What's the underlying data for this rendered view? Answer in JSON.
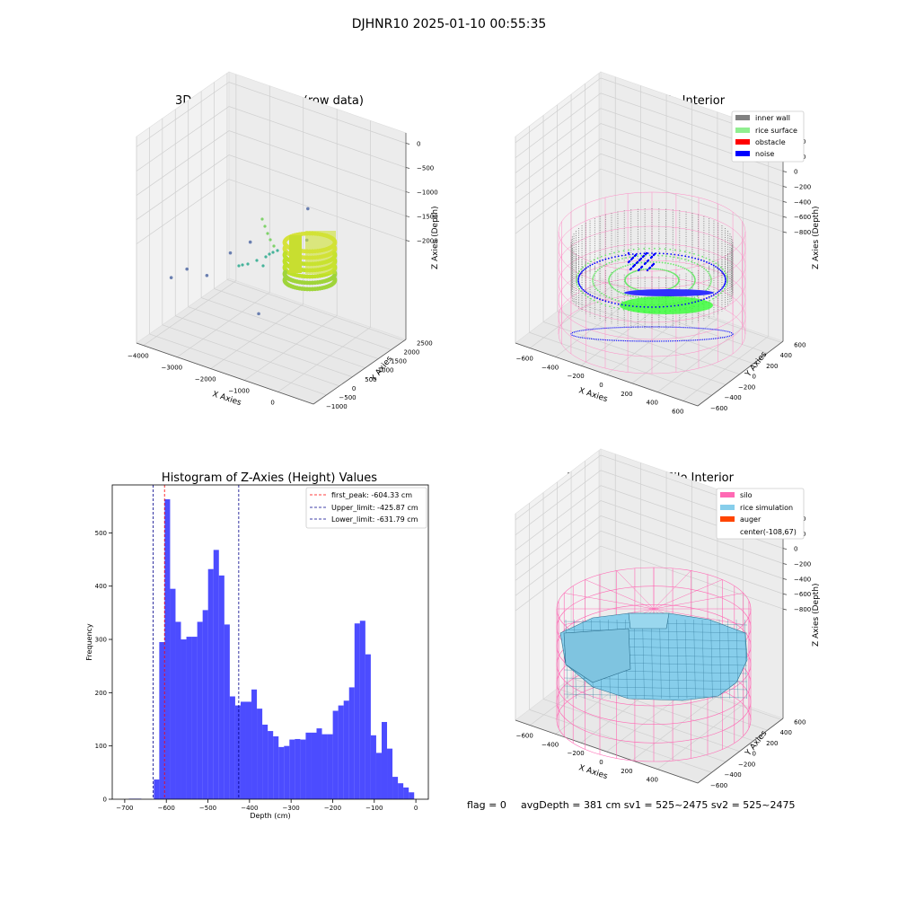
{
  "suptitle": "DJHNR10 2025-01-10 00:55:35",
  "footer": {
    "flag": "flag = 0",
    "avg": "avgDepth = 381 cm  sv1 = 525~2475  sv2 = 525~2475"
  },
  "colors": {
    "silo": "#ff69b4",
    "rice_simulation": "#87ceeb",
    "auger": "#ff4500",
    "inner_wall": "#808080",
    "rice_surface": "#90ee90",
    "obstacle": "#ff0000",
    "noise": "#0000ff",
    "hist_bar": "#0000ff",
    "first_peak_line": "#ff0000",
    "limit_line": "#00008b"
  },
  "chart_data": [
    {
      "type": "scatter",
      "title": "3D Plot of Silo Interior(row data)",
      "xlabel": "X Axies",
      "ylabel": "Y Axies",
      "zlabel": "Z Axies (Depth)",
      "x_ticks": [
        "−4000",
        "−3000",
        "−2000",
        "−1000",
        "0"
      ],
      "y_ticks": [
        "−1000",
        "−500",
        "0",
        "500",
        "1000",
        "1500",
        "2000",
        "2500"
      ],
      "z_ticks": [
        "0",
        "−500",
        "−1000",
        "−1500",
        "−2000"
      ],
      "xlim": [
        -4300,
        700
      ],
      "ylim": [
        -1000,
        2600
      ],
      "zlim": [
        -2300,
        100
      ],
      "outliers": [
        {
          "x": -3900,
          "y": -200,
          "z": -1650
        },
        {
          "x": -3600,
          "y": 0,
          "z": -1550
        },
        {
          "x": -3400,
          "y": 500,
          "z": -1700
        },
        {
          "x": -3100,
          "y": 1000,
          "z": -1500
        },
        {
          "x": -2900,
          "y": 1500,
          "z": -1450
        },
        {
          "x": -1500,
          "y": -100,
          "z": -1750
        },
        {
          "x": -1400,
          "y": 1200,
          "z": -1350
        },
        {
          "x": -1300,
          "y": 1500,
          "z": -1200
        },
        {
          "x": -1200,
          "y": 1400,
          "z": -800
        }
      ]
    },
    {
      "type": "scatter",
      "title": "3D classify of Silo Interior",
      "xlabel": "X Axies",
      "ylabel": "Y Axies",
      "zlabel": "Z Axies (Depth)",
      "x_ticks": [
        "−600",
        "−400",
        "−200",
        "0",
        "200",
        "400",
        "600"
      ],
      "y_ticks": [
        "−600",
        "−400",
        "−200",
        "0",
        "200",
        "400",
        "600"
      ],
      "z_ticks": [
        "400",
        "200",
        "0",
        "−200",
        "−400",
        "−600",
        "−800"
      ],
      "xlim": [
        -700,
        600
      ],
      "ylim": [
        -600,
        600
      ],
      "zlim": [
        -900,
        500
      ],
      "legend": [
        "inner wall",
        "rice surface",
        "obstacle",
        "noise"
      ],
      "legend_position": "top-right"
    },
    {
      "type": "bar",
      "title": "Histogram of Z-Axies (Height) Values",
      "xlabel": "Depth (cm)",
      "ylabel": "Frequency",
      "xlim": [
        -730,
        30
      ],
      "ylim": [
        0,
        590
      ],
      "x_ticks": [
        -700,
        -600,
        -500,
        -400,
        -300,
        -200,
        -100,
        0
      ],
      "y_ticks": [
        0,
        100,
        200,
        300,
        400,
        500
      ],
      "bins": [
        {
          "x0": -690,
          "x1": -675,
          "count": 1
        },
        {
          "x0": -675,
          "x1": -660,
          "count": 1
        },
        {
          "x0": -630.0,
          "x1": -616.96,
          "count": 37
        },
        {
          "x0": -616.96,
          "x1": -603.92,
          "count": 295
        },
        {
          "x0": -603.92,
          "x1": -590.88,
          "count": 563
        },
        {
          "x0": -590.88,
          "x1": -577.84,
          "count": 395
        },
        {
          "x0": -577.84,
          "x1": -564.8,
          "count": 333
        },
        {
          "x0": -564.8,
          "x1": -551.76,
          "count": 300
        },
        {
          "x0": -551.76,
          "x1": -538.72,
          "count": 305
        },
        {
          "x0": -538.72,
          "x1": -525.68,
          "count": 305
        },
        {
          "x0": -525.68,
          "x1": -512.64,
          "count": 333
        },
        {
          "x0": -512.64,
          "x1": -499.6,
          "count": 355
        },
        {
          "x0": -499.6,
          "x1": -486.56,
          "count": 432
        },
        {
          "x0": -486.56,
          "x1": -473.52,
          "count": 468
        },
        {
          "x0": -473.52,
          "x1": -460.48,
          "count": 420
        },
        {
          "x0": -460.48,
          "x1": -447.44,
          "count": 328
        },
        {
          "x0": -447.44,
          "x1": -434.4,
          "count": 193
        },
        {
          "x0": -434.4,
          "x1": -421.36,
          "count": 176
        },
        {
          "x0": -421.36,
          "x1": -408.32,
          "count": 183
        },
        {
          "x0": -408.32,
          "x1": -395.28,
          "count": 183
        },
        {
          "x0": -395.28,
          "x1": -382.24,
          "count": 206
        },
        {
          "x0": -382.24,
          "x1": -369.2,
          "count": 170
        },
        {
          "x0": -369.2,
          "x1": -356.16,
          "count": 140
        },
        {
          "x0": -356.16,
          "x1": -343.12,
          "count": 128
        },
        {
          "x0": -343.12,
          "x1": -330.08,
          "count": 118
        },
        {
          "x0": -330.08,
          "x1": -317.04,
          "count": 98
        },
        {
          "x0": -317.04,
          "x1": -304.0,
          "count": 100
        },
        {
          "x0": -304.0,
          "x1": -290.96,
          "count": 112
        },
        {
          "x0": -290.96,
          "x1": -277.92,
          "count": 113
        },
        {
          "x0": -277.92,
          "x1": -264.88,
          "count": 112
        },
        {
          "x0": -264.88,
          "x1": -251.84,
          "count": 125
        },
        {
          "x0": -251.84,
          "x1": -238.8,
          "count": 125
        },
        {
          "x0": -238.8,
          "x1": -225.76,
          "count": 133
        },
        {
          "x0": -225.76,
          "x1": -212.72,
          "count": 122
        },
        {
          "x0": -212.72,
          "x1": -199.68,
          "count": 122
        },
        {
          "x0": -199.68,
          "x1": -186.64,
          "count": 166
        },
        {
          "x0": -186.64,
          "x1": -173.6,
          "count": 176
        },
        {
          "x0": -173.6,
          "x1": -160.56,
          "count": 185
        },
        {
          "x0": -160.56,
          "x1": -147.52,
          "count": 210
        },
        {
          "x0": -147.52,
          "x1": -134.48,
          "count": 330
        },
        {
          "x0": -134.48,
          "x1": -121.44,
          "count": 335
        },
        {
          "x0": -121.44,
          "x1": -108.4,
          "count": 272
        },
        {
          "x0": -108.4,
          "x1": -95.36,
          "count": 120
        },
        {
          "x0": -95.36,
          "x1": -82.32,
          "count": 87
        },
        {
          "x0": -82.32,
          "x1": -69.28,
          "count": 145
        },
        {
          "x0": -69.28,
          "x1": -56.24,
          "count": 95
        },
        {
          "x0": -56.24,
          "x1": -43.2,
          "count": 42
        },
        {
          "x0": -43.2,
          "x1": -30.16,
          "count": 30
        },
        {
          "x0": -30.16,
          "x1": -17.12,
          "count": 22
        },
        {
          "x0": -17.12,
          "x1": -4.08,
          "count": 13
        }
      ],
      "vlines": [
        {
          "label": "first_peak: -604.33 cm",
          "x": -604.33,
          "color": "#ff0000"
        },
        {
          "label": "Upper_limit: -425.87 cm",
          "x": -425.87,
          "color": "#00008b"
        },
        {
          "label": "Lower_limit: -631.79 cm",
          "x": -631.79,
          "color": "#00008b"
        }
      ],
      "legend_position": "top-right"
    },
    {
      "type": "area",
      "title": "3D simulation of Silo Interior",
      "xlabel": "X Axies",
      "ylabel": "Y Axies",
      "zlabel": "Z Axies (Depth)",
      "x_ticks": [
        "−600",
        "−400",
        "−200",
        "0",
        "200",
        "400"
      ],
      "y_ticks": [
        "−600",
        "−400",
        "−200",
        "0",
        "200",
        "400",
        "600"
      ],
      "z_ticks": [
        "400",
        "200",
        "0",
        "−200",
        "−400",
        "−600",
        "−800"
      ],
      "xlim": [
        -700,
        600
      ],
      "ylim": [
        -600,
        600
      ],
      "zlim": [
        -900,
        500
      ],
      "legend": [
        "silo",
        "rice simulation",
        "auger",
        "center(-108,67)"
      ],
      "legend_position": "top-right"
    }
  ]
}
